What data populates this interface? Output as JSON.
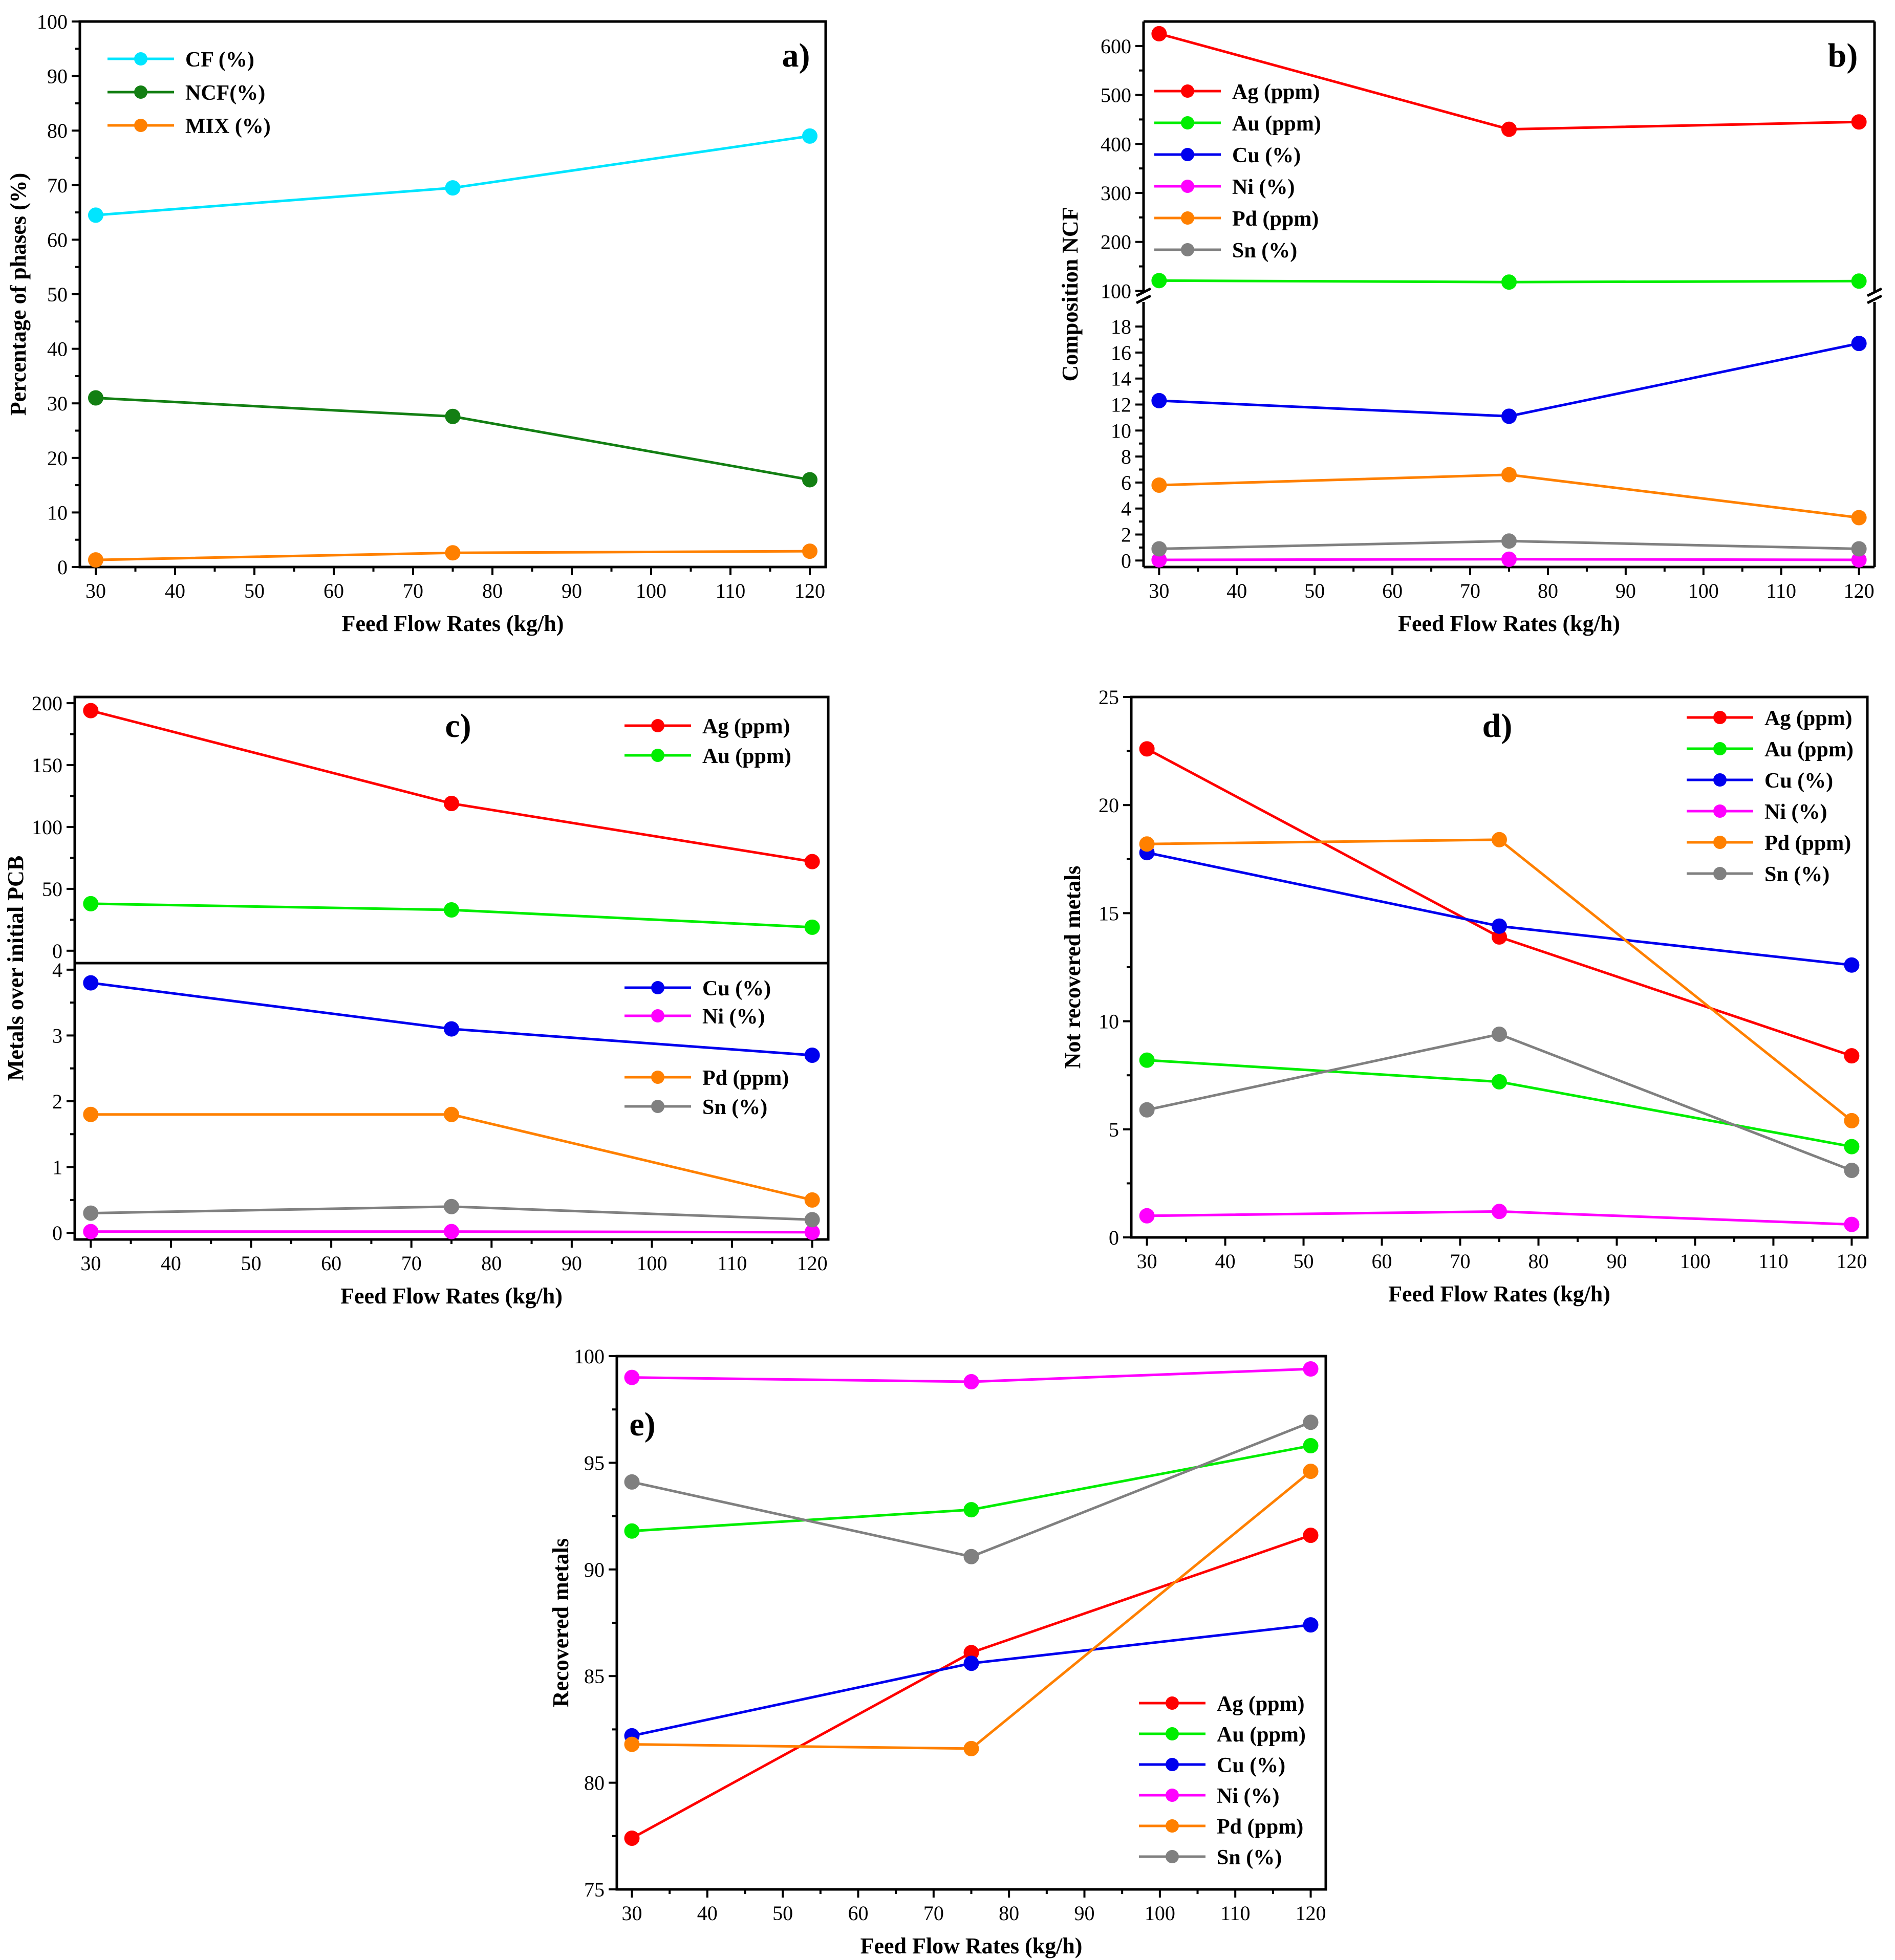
{
  "colors": {
    "CF": "#00e5ff",
    "NCF": "#137f13",
    "MIX": "#ff8000",
    "Ag": "#ff0000",
    "Au": "#00ee00",
    "Cu": "#0000ee",
    "Ni": "#ff00ff",
    "Pd": "#ff8000",
    "Sn": "#808080"
  },
  "chart_data": [
    {
      "id": "a",
      "type": "line",
      "panel_label": "a)",
      "xlabel": "Feed Flow Rates (kg/h)",
      "ylabel": "Percentage of phases (%)",
      "x": [
        30,
        75,
        120
      ],
      "xlim": [
        28,
        122
      ],
      "xticks": [
        30,
        40,
        50,
        60,
        70,
        80,
        90,
        100,
        110,
        120
      ],
      "ylim": [
        0,
        100
      ],
      "yticks": [
        0,
        10,
        20,
        30,
        40,
        50,
        60,
        70,
        80,
        90,
        100
      ],
      "legend_position": "top-left",
      "series": [
        {
          "key": "CF",
          "name": "CF (%)",
          "values": [
            64.5,
            69.5,
            79
          ]
        },
        {
          "key": "NCF",
          "name": "NCF(%)",
          "values": [
            31,
            27.6,
            16
          ]
        },
        {
          "key": "MIX",
          "name": "MIX (%)",
          "values": [
            1.3,
            2.6,
            2.9
          ]
        }
      ]
    },
    {
      "id": "b",
      "type": "line",
      "panel_label": "b)",
      "xlabel": "Feed Flow Rates (kg/h)",
      "ylabel": "Composition NCF",
      "x": [
        30,
        75,
        120
      ],
      "xlim": [
        28,
        122
      ],
      "xticks": [
        30,
        40,
        50,
        60,
        70,
        80,
        90,
        100,
        110,
        120
      ],
      "broken_axis": true,
      "upper_ylim": [
        90,
        650
      ],
      "upper_yticks": [
        100,
        200,
        300,
        400,
        500,
        600
      ],
      "lower_ylim": [
        -0.5,
        19.5
      ],
      "lower_yticks": [
        0,
        2,
        4,
        6,
        8,
        10,
        12,
        14,
        16,
        18
      ],
      "legend_position": "top-left",
      "series": [
        {
          "key": "Ag",
          "name": "Ag (ppm)",
          "values": [
            625,
            430,
            445
          ],
          "axis": "upper"
        },
        {
          "key": "Au",
          "name": "Au (ppm)",
          "values": [
            121,
            118,
            120
          ],
          "axis": "upper"
        },
        {
          "key": "Cu",
          "name": "Cu (%)",
          "values": [
            12.3,
            11.1,
            16.7
          ],
          "axis": "lower"
        },
        {
          "key": "Ni",
          "name": "Ni (%)",
          "values": [
            0.05,
            0.1,
            0.05
          ],
          "axis": "lower"
        },
        {
          "key": "Pd",
          "name": "Pd (ppm)",
          "values": [
            5.8,
            6.6,
            3.3
          ],
          "axis": "lower"
        },
        {
          "key": "Sn",
          "name": "Sn (%)",
          "values": [
            0.9,
            1.5,
            0.9
          ],
          "axis": "lower"
        }
      ]
    },
    {
      "id": "c",
      "type": "line",
      "panel_label": "c)",
      "xlabel": "Feed Flow Rates (kg/h)",
      "ylabel": "Metals over initial PCB",
      "x": [
        30,
        75,
        120
      ],
      "xlim": [
        28,
        122
      ],
      "xticks": [
        30,
        40,
        50,
        60,
        70,
        80,
        90,
        100,
        110,
        120
      ],
      "stacked_axes": true,
      "upper_ylim": [
        -10,
        205
      ],
      "upper_yticks": [
        0,
        50,
        100,
        150,
        200
      ],
      "lower_ylim": [
        -0.1,
        4.1
      ],
      "lower_yticks": [
        0,
        1,
        2,
        3,
        4
      ],
      "legend_position": "top-right",
      "series": [
        {
          "key": "Ag",
          "name": "Ag (ppm)",
          "values": [
            194,
            119,
            72
          ],
          "axis": "upper"
        },
        {
          "key": "Au",
          "name": "Au (ppm)",
          "values": [
            38,
            33,
            19
          ],
          "axis": "upper"
        },
        {
          "key": "Cu",
          "name": "Cu (%)",
          "values": [
            3.8,
            3.1,
            2.7
          ],
          "axis": "lower"
        },
        {
          "key": "Ni",
          "name": "Ni (%)",
          "values": [
            0.02,
            0.02,
            0.01
          ],
          "axis": "lower"
        },
        {
          "key": "Pd",
          "name": "Pd (ppm)",
          "values": [
            1.8,
            1.8,
            0.5
          ],
          "axis": "lower"
        },
        {
          "key": "Sn",
          "name": "Sn (%)",
          "values": [
            0.3,
            0.4,
            0.2
          ],
          "axis": "lower"
        }
      ]
    },
    {
      "id": "d",
      "type": "line",
      "panel_label": "d)",
      "xlabel": "Feed Flow Rates (kg/h)",
      "ylabel": "Not recovered metals",
      "x": [
        30,
        75,
        120
      ],
      "xlim": [
        28,
        122
      ],
      "xticks": [
        30,
        40,
        50,
        60,
        70,
        80,
        90,
        100,
        110,
        120
      ],
      "ylim": [
        0,
        25
      ],
      "yticks": [
        0,
        5,
        10,
        15,
        20,
        25
      ],
      "legend_position": "top-right",
      "series": [
        {
          "key": "Ag",
          "name": "Ag (ppm)",
          "values": [
            22.6,
            13.9,
            8.4
          ]
        },
        {
          "key": "Au",
          "name": "Au (ppm)",
          "values": [
            8.2,
            7.2,
            4.2
          ]
        },
        {
          "key": "Cu",
          "name": "Cu (%)",
          "values": [
            17.8,
            14.4,
            12.6
          ]
        },
        {
          "key": "Ni",
          "name": "Ni (%)",
          "values": [
            1.0,
            1.2,
            0.6
          ]
        },
        {
          "key": "Pd",
          "name": "Pd (ppm)",
          "values": [
            18.2,
            18.4,
            5.4
          ]
        },
        {
          "key": "Sn",
          "name": "Sn (%)",
          "values": [
            5.9,
            9.4,
            3.1
          ]
        }
      ]
    },
    {
      "id": "e",
      "type": "line",
      "panel_label": "e)",
      "xlabel": "Feed Flow Rates (kg/h)",
      "ylabel": "Recovered metals",
      "x": [
        30,
        75,
        120
      ],
      "xlim": [
        28,
        122
      ],
      "xticks": [
        30,
        40,
        50,
        60,
        70,
        80,
        90,
        100,
        110,
        120
      ],
      "ylim": [
        75,
        100
      ],
      "yticks": [
        75,
        80,
        85,
        90,
        95,
        100
      ],
      "legend_position": "bottom-right",
      "series": [
        {
          "key": "Ag",
          "name": "Ag (ppm)",
          "values": [
            77.4,
            86.1,
            91.6
          ]
        },
        {
          "key": "Au",
          "name": "Au (ppm)",
          "values": [
            91.8,
            92.8,
            95.8
          ]
        },
        {
          "key": "Cu",
          "name": "Cu (%)",
          "values": [
            82.2,
            85.6,
            87.4
          ]
        },
        {
          "key": "Ni",
          "name": "Ni (%)",
          "values": [
            99.0,
            98.8,
            99.4
          ]
        },
        {
          "key": "Pd",
          "name": "Pd (ppm)",
          "values": [
            81.8,
            81.6,
            94.6
          ]
        },
        {
          "key": "Sn",
          "name": "Sn (%)",
          "values": [
            94.1,
            90.6,
            96.9
          ]
        }
      ]
    }
  ]
}
